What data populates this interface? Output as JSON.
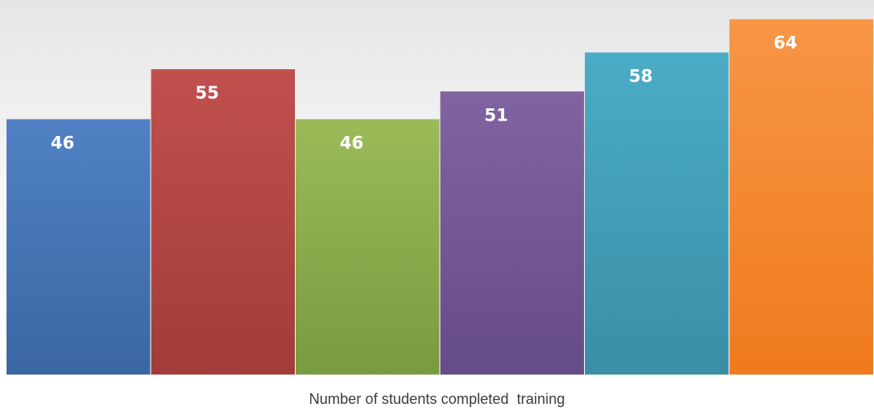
{
  "chart_data": {
    "type": "bar",
    "title": "",
    "xlabel": "Number of students completed  training",
    "ylabel": "",
    "categories": [
      "",
      "",
      "",
      "",
      "",
      ""
    ],
    "values": [
      46,
      55,
      46,
      51,
      58,
      64
    ],
    "data_labels": [
      "46",
      "55",
      "46",
      "51",
      "58",
      "64"
    ],
    "ylim": [
      0,
      66
    ],
    "grid": false,
    "legend": "none",
    "bar_colors": [
      [
        "#4f81c4",
        "#3a67a3"
      ],
      [
        "#c0504d",
        "#a23c39"
      ],
      [
        "#9bbb59",
        "#789b3f"
      ],
      [
        "#8064a2",
        "#654b87"
      ],
      [
        "#4bacc6",
        "#3a8ea6"
      ],
      [
        "#f79646",
        "#f07a1d"
      ]
    ]
  }
}
